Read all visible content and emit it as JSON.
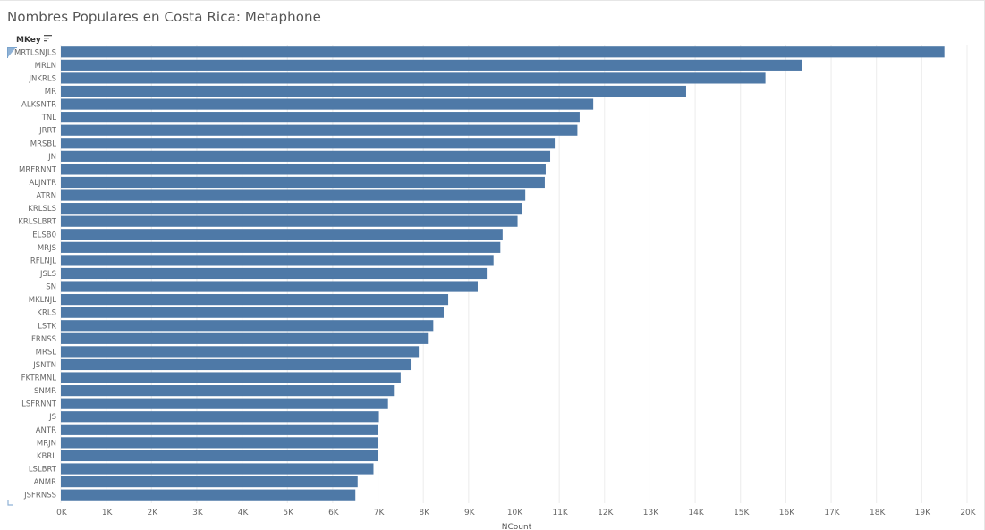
{
  "title": "Nombres Populares en Costa Rica: Metaphone",
  "row_header": "MKey",
  "icons": {
    "sort": "sort-descending-icon",
    "selection": "selection-handle-icon",
    "corner": "corner-bracket-icon"
  },
  "colors": {
    "bar": "#4e79a7",
    "grid": "#ececec",
    "text": "#666666",
    "title": "#555555"
  },
  "chart_data": {
    "type": "bar",
    "orientation": "horizontal",
    "title": "Nombres Populares en Costa Rica: Metaphone",
    "xlabel": "NCount",
    "ylabel": "MKey",
    "xlim": [
      0,
      20000
    ],
    "x_ticks": [
      "0K",
      "1K",
      "2K",
      "3K",
      "4K",
      "5K",
      "6K",
      "7K",
      "8K",
      "9K",
      "10K",
      "11K",
      "12K",
      "13K",
      "14K",
      "15K",
      "16K",
      "17K",
      "18K",
      "19K",
      "20K"
    ],
    "grid": true,
    "sort": "descending",
    "categories": [
      "MRTLSNJLS",
      "MRLN",
      "JNKRLS",
      "MR",
      "ALKSNTR",
      "TNL",
      "JRRT",
      "MRSBL",
      "JN",
      "MRFRNNT",
      "ALJNTR",
      "ATRN",
      "KRLSLS",
      "KRLSLBRT",
      "ELSB0",
      "MRJS",
      "RFLNJL",
      "JSLS",
      "SN",
      "MKLNJL",
      "KRLS",
      "LSTK",
      "FRNSS",
      "MRSL",
      "JSNTN",
      "FKTRMNL",
      "SNMR",
      "LSFRNNT",
      "JS",
      "ANTR",
      "MRJN",
      "KBRL",
      "LSLBRT",
      "ANMR",
      "JSFRNSS"
    ],
    "values": [
      19500,
      16350,
      15550,
      13800,
      11750,
      11450,
      11400,
      10900,
      10800,
      10700,
      10680,
      10250,
      10180,
      10080,
      9750,
      9700,
      9550,
      9400,
      9200,
      8550,
      8450,
      8220,
      8100,
      7900,
      7720,
      7500,
      7350,
      7220,
      7020,
      7000,
      7000,
      7000,
      6900,
      6550,
      6500
    ]
  }
}
